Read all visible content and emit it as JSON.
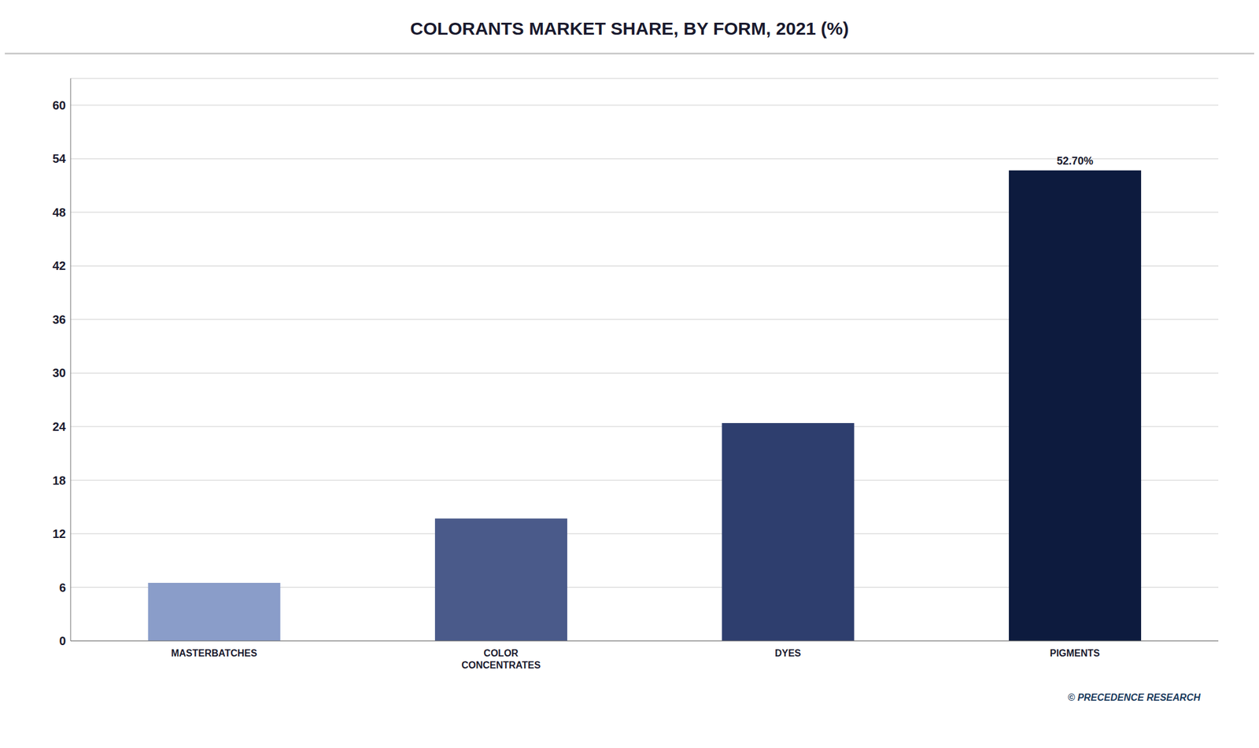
{
  "chart_data": {
    "type": "bar",
    "title": "COLORANTS MARKET SHARE, BY FORM, 2021 (%)",
    "categories": [
      "MASTERBATCHES",
      "COLOR\nCONCENTRATES",
      "DYES",
      "PIGMENTS"
    ],
    "values": [
      6.5,
      13.7,
      24.4,
      52.7
    ],
    "colors": [
      "#8a9dc9",
      "#4a5a8a",
      "#2e3e6e",
      "#0d1b3e"
    ],
    "ylim": [
      0,
      63
    ],
    "yticks": [
      0,
      6,
      12,
      18,
      24,
      30,
      36,
      42,
      48,
      54,
      60
    ],
    "grid": true,
    "annotations": [
      {
        "text": "52.70%",
        "category": "PIGMENTS"
      },
      {
        "text": "© PRECEDENCE RESEARCH"
      }
    ]
  }
}
